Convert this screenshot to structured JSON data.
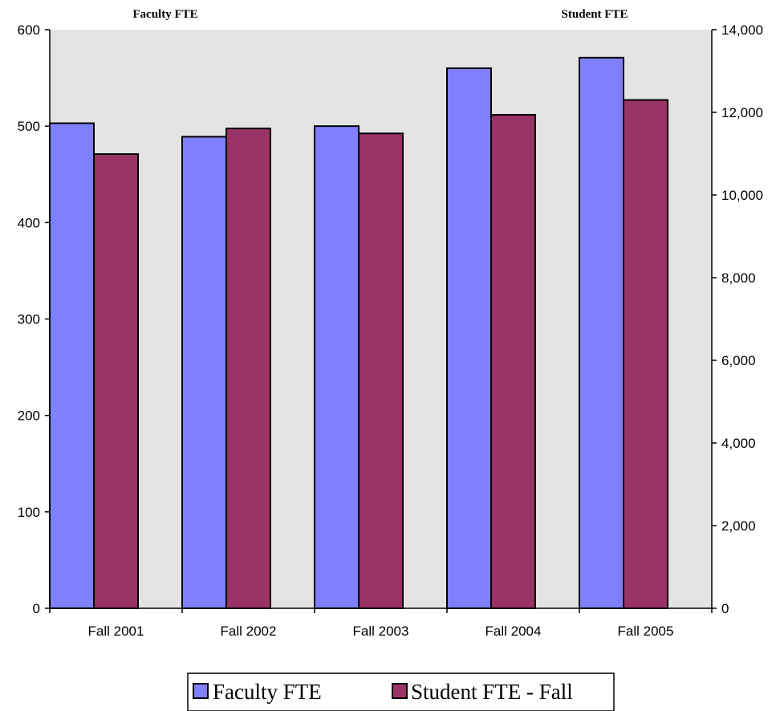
{
  "chart_data": {
    "type": "bar",
    "categories": [
      "Fall 2001",
      "Fall 2002",
      "Fall 2003",
      "Fall 2004",
      "Fall 2005"
    ],
    "series": [
      {
        "name": "Faculty FTE",
        "axis": "left",
        "color": "#8080ff",
        "values": [
          503,
          489,
          500,
          560,
          571
        ]
      },
      {
        "name": "Student FTE - Fall",
        "axis": "right",
        "color": "#993366",
        "values": [
          10990,
          11610,
          11490,
          11940,
          12300
        ]
      }
    ],
    "left_axis": {
      "title": "Faculty FTE",
      "ylim": [
        0,
        600
      ],
      "ticks": [
        0,
        100,
        200,
        300,
        400,
        500,
        600
      ],
      "tick_labels": [
        "0",
        "100",
        "200",
        "300",
        "400",
        "500",
        "600"
      ]
    },
    "right_axis": {
      "title": "Student FTE",
      "ylim": [
        0,
        14000
      ],
      "ticks": [
        0,
        2000,
        4000,
        6000,
        8000,
        10000,
        12000,
        14000
      ],
      "tick_labels": [
        "0",
        "2,000",
        "4,000",
        "6,000",
        "8,000",
        "10,000",
        "12,000",
        "14,000"
      ]
    },
    "plot_background": "#e3e3e3",
    "legend": {
      "placement": "bottom",
      "entries": [
        "Faculty FTE",
        "Student FTE - Fall"
      ]
    }
  }
}
